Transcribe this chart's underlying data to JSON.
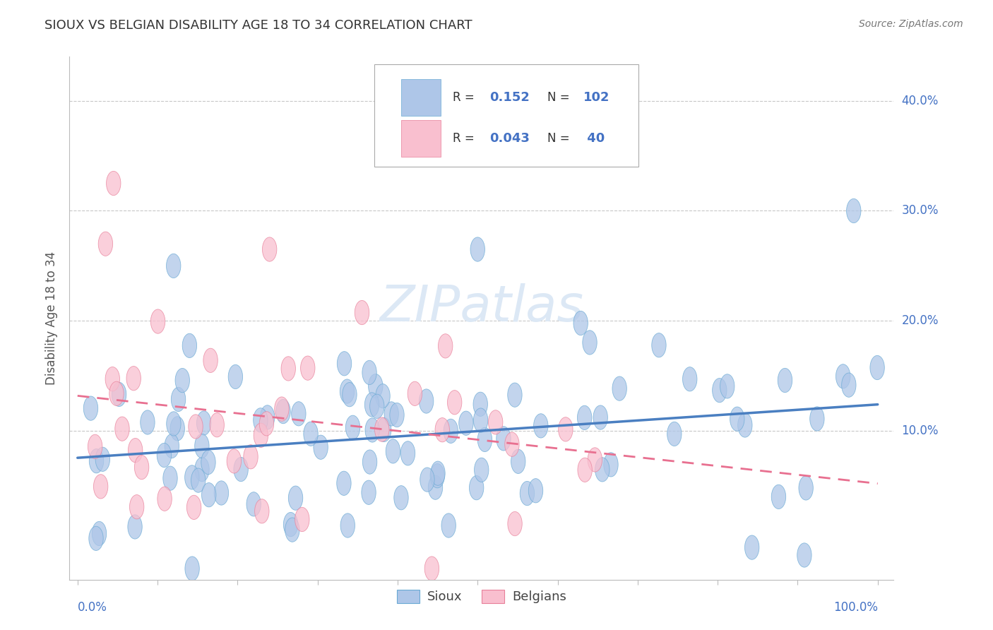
{
  "title": "SIOUX VS BELGIAN DISABILITY AGE 18 TO 34 CORRELATION CHART",
  "source": "Source: ZipAtlas.com",
  "ylabel": "Disability Age 18 to 34",
  "ytick_labels": [
    "10.0%",
    "20.0%",
    "30.0%",
    "40.0%"
  ],
  "ytick_vals": [
    0.1,
    0.2,
    0.3,
    0.4
  ],
  "xlim": [
    -0.01,
    1.02
  ],
  "ylim": [
    -0.035,
    0.44
  ],
  "sioux_R": 0.152,
  "sioux_N": 102,
  "belgian_R": 0.043,
  "belgian_N": 40,
  "sioux_color": "#aec6e8",
  "sioux_edge_color": "#6aaad4",
  "belgian_color": "#f9bfcf",
  "belgian_edge_color": "#e8809a",
  "sioux_line_color": "#4a7fc1",
  "belgian_line_color": "#e87090",
  "background_color": "#ffffff",
  "grid_color": "#c8c8c8",
  "watermark_color": "#dce8f5",
  "legend_box_color": "#aaaaaa",
  "legend_text_color": "#333333",
  "legend_value_color": "#4472c4",
  "title_color": "#333333",
  "source_color": "#777777",
  "axis_label_color": "#4472c4",
  "tick_label_color": "#4472c4"
}
